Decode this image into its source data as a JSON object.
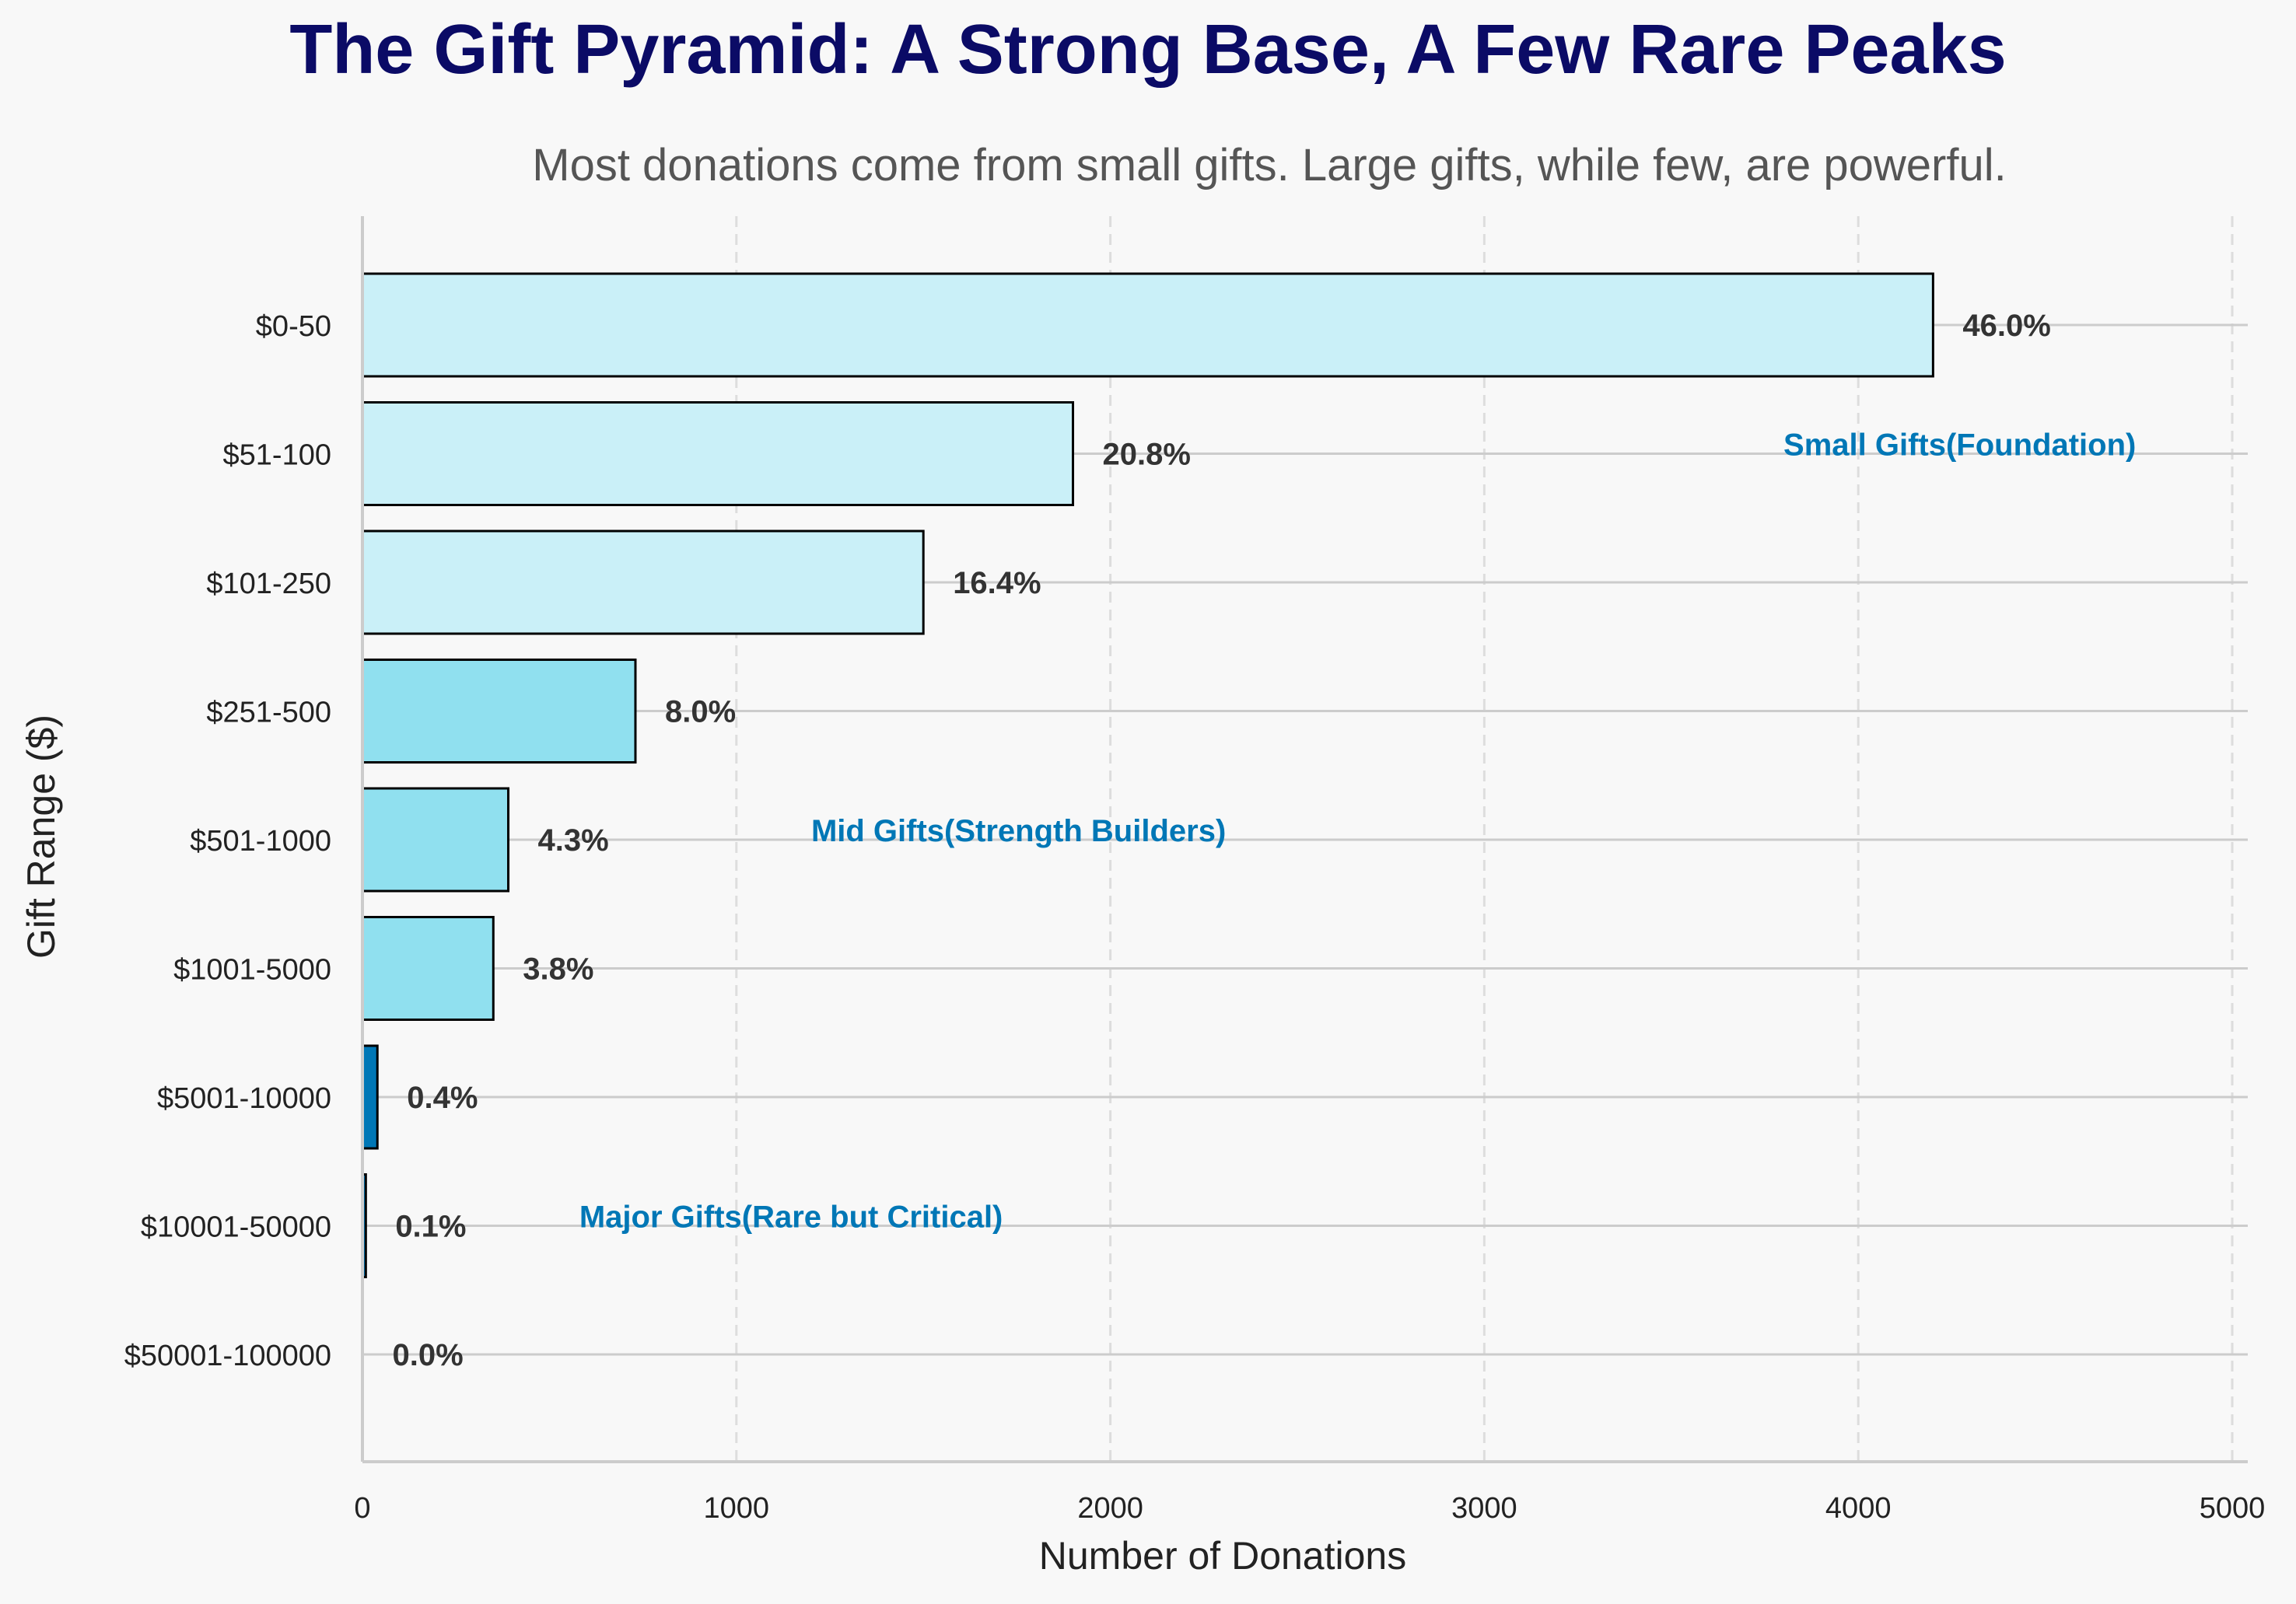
{
  "chart_data": {
    "type": "bar",
    "orientation": "horizontal",
    "title": "The Gift Pyramid: A Strong Base, A Few Rare Peaks",
    "subtitle": "Most donations come from small gifts. Large gifts, while few, are powerful.",
    "xlabel": "Number of Donations",
    "ylabel": "Gift Range ($)",
    "xlim": [
      0,
      5000
    ],
    "xticks": [
      "0",
      "1000",
      "2000",
      "3000",
      "4000",
      "5000"
    ],
    "grid": true,
    "categories": [
      "$0-50",
      "$51-100",
      "$101-250",
      "$251-500",
      "$501-1000",
      "$1001-5000",
      "$5001-10000",
      "$10001-50000",
      "$50001-100000"
    ],
    "values": [
      4200,
      1900,
      1500,
      730,
      390,
      350,
      40,
      9,
      1
    ],
    "percent_labels": [
      "46.0%",
      "20.8%",
      "16.4%",
      "8.0%",
      "4.3%",
      "3.8%",
      "0.4%",
      "0.1%",
      "0.0%"
    ],
    "tiers": [
      "small",
      "small",
      "small",
      "mid",
      "mid",
      "mid",
      "major",
      "major",
      "major"
    ],
    "tier_colors": {
      "small": "#caf0f8",
      "mid": "#90e0ef",
      "major": "#0077b6"
    },
    "annotation_color": "#0077b6",
    "annotations": [
      {
        "text": "Small Gifts(Foundation)",
        "x": 3800,
        "category": "$51-100"
      },
      {
        "text": "Mid Gifts(Strength Builders)",
        "x": 1200,
        "category": "$501-1000"
      },
      {
        "text": "Major Gifts(Rare but Critical)",
        "x": 580,
        "category": "$10001-50000"
      }
    ]
  }
}
